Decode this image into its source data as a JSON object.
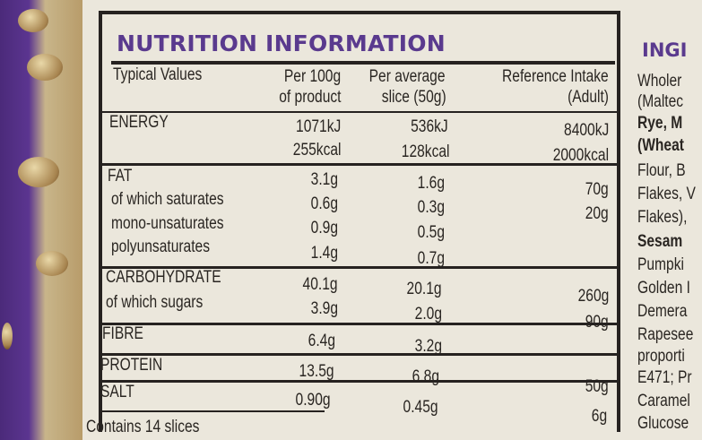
{
  "title": "NUTRITION INFORMATION",
  "headers": {
    "typical_values": "Typical Values",
    "per100_line1": "Per 100g",
    "per100_line2": "of product",
    "slice_line1": "Per average",
    "slice_line2": "slice (50g)",
    "ref_line1": "Reference Intake",
    "ref_line2": "(Adult)"
  },
  "rows": {
    "energy": {
      "label": "ENERGY",
      "p100_kj": "1071kJ",
      "slice_kj": "536kJ",
      "ri_kj": "8400kJ",
      "p100_kcal": "255kcal",
      "slice_kcal": "128kcal",
      "ri_kcal": "2000kcal"
    },
    "fat": {
      "label": "FAT",
      "p100": "3.1g",
      "slice": "1.6g",
      "ri": "70g"
    },
    "saturates": {
      "label": "of which saturates",
      "p100": "0.6g",
      "slice": "0.3g",
      "ri": "20g"
    },
    "mono": {
      "label": "mono-unsaturates",
      "p100": "0.9g",
      "slice": "0.5g"
    },
    "poly": {
      "label": "polyunsaturates",
      "p100": "1.4g",
      "slice": "0.7g"
    },
    "carb": {
      "label": "CARBOHYDRATE",
      "p100": "40.1g",
      "slice": "20.1g",
      "ri": "260g"
    },
    "sugars": {
      "label": "of which sugars",
      "p100": "3.9g",
      "slice": "2.0g",
      "ri": "90g"
    },
    "fibre": {
      "label": "FIBRE",
      "p100": "6.4g",
      "slice": "3.2g"
    },
    "protein": {
      "label": "PROTEIN",
      "p100": "13.5g",
      "slice": "6.8g",
      "ri": "50g"
    },
    "salt": {
      "label": "SALT",
      "p100": "0.90g",
      "slice": "0.45g",
      "ri": "6g"
    }
  },
  "footer": "Contains 14 slices",
  "ingredients": {
    "title": "INGI",
    "lines": [
      "Wholer",
      "(Maltec",
      "Rye, M",
      "(Wheat",
      "Flour, B",
      "Flakes, V",
      "Flakes),",
      "Sesam",
      "Pumpki",
      "Golden I",
      "Demera",
      "Rapesee",
      "proporti",
      "E471; Pr",
      "Caramel",
      "Glucose"
    ]
  }
}
